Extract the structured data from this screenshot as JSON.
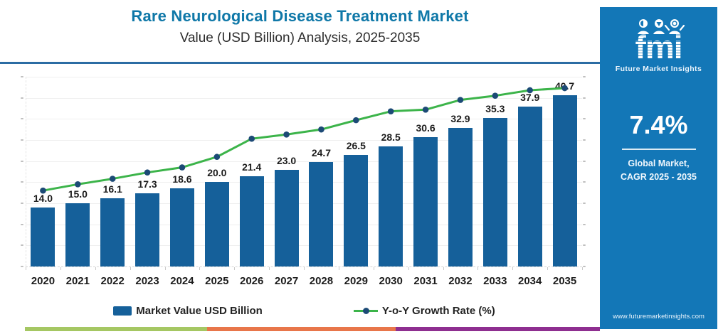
{
  "header": {
    "title": "Rare Neurological Disease Treatment Market",
    "subtitle": "Value (USD Billion) Analysis, 2025-2035"
  },
  "chart_data": {
    "type": "bar",
    "combo": "bar + line",
    "title": "Rare Neurological Disease Treatment Market",
    "subtitle": "Value (USD Billion) Analysis, 2025-2035",
    "categories": [
      "2020",
      "2021",
      "2022",
      "2023",
      "2024",
      "2025",
      "2026",
      "2027",
      "2028",
      "2029",
      "2030",
      "2031",
      "2032",
      "2033",
      "2034",
      "2035"
    ],
    "series": [
      {
        "name": "Market Value USD Billion",
        "type": "bar",
        "values": [
          14.0,
          15.0,
          16.1,
          17.3,
          18.6,
          20.0,
          21.4,
          23.0,
          24.7,
          26.5,
          28.5,
          30.6,
          32.9,
          35.3,
          37.9,
          40.7
        ],
        "labels": [
          "14.0",
          "15.0",
          "16.1",
          "17.3",
          "18.6",
          "20.0",
          "21.4",
          "23.0",
          "24.7",
          "26.5",
          "28.5",
          "30.6",
          "32.9",
          "35.3",
          "37.9",
          "40.7"
        ]
      },
      {
        "name": "Y-o-Y Growth Rate (%)",
        "type": "line",
        "axis": "secondary (no visible tick labels)",
        "plotted_values_primary_axis_equivalent": [
          18.0,
          19.5,
          20.8,
          22.3,
          23.5,
          26.0,
          30.3,
          31.3,
          32.5,
          34.7,
          36.8,
          37.2,
          39.5,
          40.5,
          41.8,
          42.3
        ]
      }
    ],
    "xlabel": "",
    "ylabel": "",
    "ylim": [
      0,
      45
    ],
    "y_tick_step": 5,
    "y_axis_labels_visible": false,
    "grid": true,
    "legend_position": "bottom"
  },
  "legend": {
    "bar_label": "Market Value USD Billion",
    "line_label": "Y-o-Y Growth Rate (%)"
  },
  "sidebar": {
    "logo_text": "fmi",
    "logo_caption": "Future Market Insights",
    "cagr_value": "7.4%",
    "cagr_caption_line1": "Global Market,",
    "cagr_caption_line2": "CAGR 2025 - 2035",
    "website": "www.futuremarketinsights.com"
  },
  "colors": {
    "title": "#0f78a8",
    "subtitle_text": "#2d2d2d",
    "separator": "#2b6ca3",
    "bar": "#15609a",
    "line": "#3cb44a",
    "marker": "#1c4a76",
    "label_text": "#1c1c1c",
    "sidebar_bg": "#1377b7",
    "strip_green": "#a5c763",
    "strip_orange": "#e8764a",
    "strip_purple": "#8e2f90"
  }
}
